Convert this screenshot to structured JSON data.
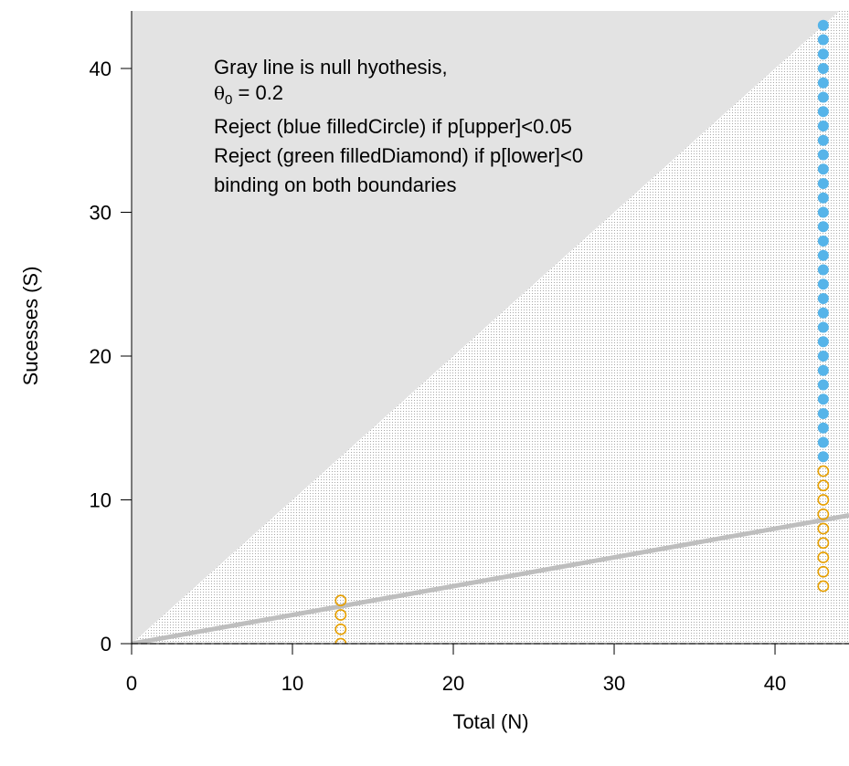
{
  "chart_data": {
    "type": "scatter",
    "xlabel": "Total (N)",
    "ylabel": "Sucesses (S)",
    "xlim": [
      0,
      44.6
    ],
    "ylim": [
      0,
      44
    ],
    "x_ticks": [
      0,
      10,
      20,
      30,
      40
    ],
    "y_ticks": [
      0,
      10,
      20,
      30,
      40
    ],
    "null_hypothesis": {
      "theta0": 0.2,
      "color": "#bebebe"
    },
    "annotation": {
      "line1": "Gray line is null hyothesis,",
      "line2_symbol": "θ",
      "line2_sub": "0",
      "line2_value": " = 0.2",
      "line3": "Reject (blue filledCircle) if p[upper]<0.05",
      "line4": "Reject (green filledDiamond) if p[lower]<0",
      "line5": "binding on both boundaries"
    },
    "series": [
      {
        "marker": "open-circle",
        "color": "#e69f00",
        "points": [
          [
            13,
            0
          ],
          [
            13,
            1
          ],
          [
            13,
            2
          ],
          [
            13,
            3
          ],
          [
            43,
            4
          ],
          [
            43,
            5
          ],
          [
            43,
            6
          ],
          [
            43,
            7
          ],
          [
            43,
            8
          ],
          [
            43,
            9
          ],
          [
            43,
            10
          ],
          [
            43,
            11
          ],
          [
            43,
            12
          ]
        ]
      },
      {
        "marker": "filled-circle",
        "color": "#56b4e9",
        "x": 43,
        "y_from": 13,
        "y_to": 43
      }
    ],
    "regions": {
      "infeasible_fill": "#e3e3e3",
      "feasible_dots": "#9a9a9a"
    }
  }
}
